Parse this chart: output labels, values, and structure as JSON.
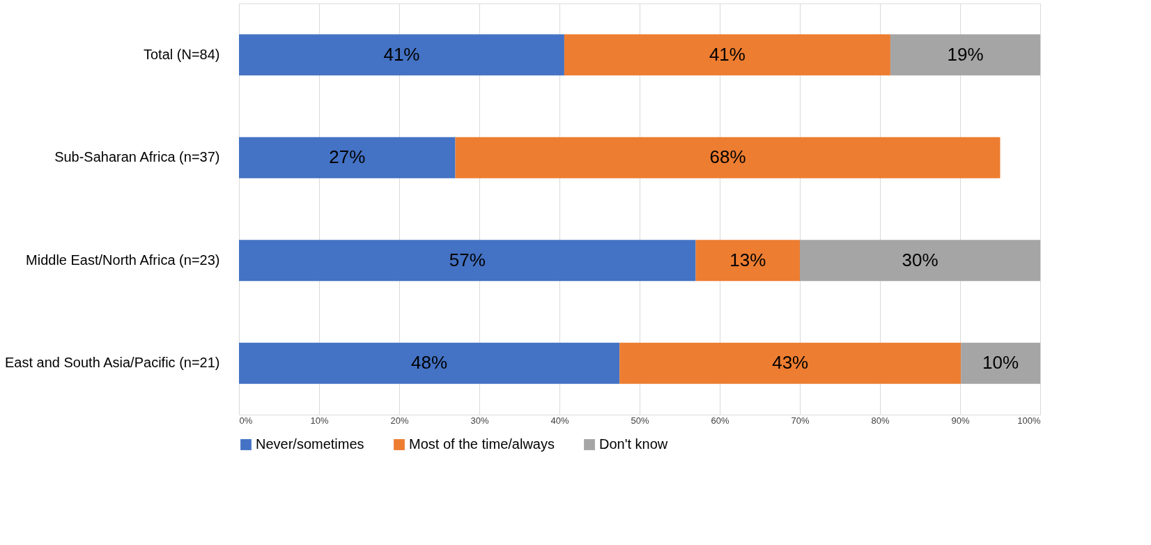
{
  "chart_data": {
    "type": "bar",
    "orientation": "horizontal",
    "stacked": true,
    "categories": [
      "Total (N=84)",
      "Sub-Saharan Africa (n=37)",
      "Middle East/North Africa (n=23)",
      "East and South Asia/Pacific (n=21)"
    ],
    "series": [
      {
        "name": "Never/sometimes",
        "color": "#4472c4",
        "values": [
          40.6,
          27,
          57.0,
          47.5
        ],
        "value_labels": [
          "41%",
          "27%",
          "57%",
          "48%"
        ]
      },
      {
        "name": "Most of the time/always",
        "color": "#ed7d31",
        "values": [
          40.7,
          68,
          13.0,
          42.6
        ],
        "value_labels": [
          "41%",
          "68%",
          "13%",
          "43%"
        ]
      },
      {
        "name": "Don't know",
        "color": "#a5a5a5",
        "values": [
          18.7,
          null,
          30.0,
          9.9
        ],
        "value_labels": [
          "19%",
          null,
          "30%",
          "10%"
        ]
      }
    ],
    "xlim": [
      0,
      100
    ],
    "xticks": [
      {
        "value": 0,
        "label": "0%"
      },
      {
        "value": 10,
        "label": "10%"
      },
      {
        "value": 20,
        "label": "20%"
      },
      {
        "value": 30,
        "label": "30%"
      },
      {
        "value": 40,
        "label": "40%"
      },
      {
        "value": 50,
        "label": "50%"
      },
      {
        "value": 60,
        "label": "60%"
      },
      {
        "value": 70,
        "label": "70%"
      },
      {
        "value": 80,
        "label": "80%"
      },
      {
        "value": 90,
        "label": "90%"
      },
      {
        "value": 100,
        "label": "100%"
      }
    ],
    "grid": "x",
    "legend": "bottom"
  }
}
